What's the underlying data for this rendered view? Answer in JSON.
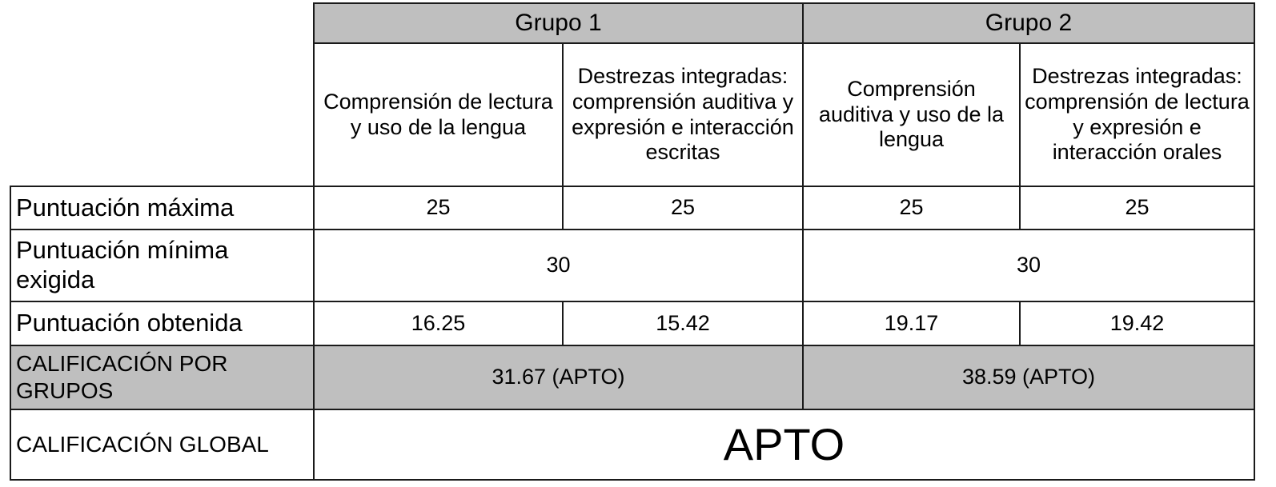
{
  "groups": [
    {
      "label": "Grupo 1"
    },
    {
      "label": "Grupo 2"
    }
  ],
  "subheadings": [
    "Comprensión de lectura y uso de la lengua",
    "Destrezas integradas: comprensión auditiva y expresión e interacción escritas",
    "Comprensión auditiva y uso de la lengua",
    "Destrezas integradas: comprensión de lectura y expresión e interacción orales"
  ],
  "rows": {
    "max_score": {
      "label": "Puntuación máxima",
      "values": [
        "25",
        "25",
        "25",
        "25"
      ]
    },
    "min_required": {
      "label": "Puntuación mínima exigida",
      "group_values": [
        "30",
        "30"
      ]
    },
    "obtained": {
      "label": "Puntuación obtenida",
      "values": [
        "16.25",
        "15.42",
        "19.17",
        "19.42"
      ]
    },
    "group_grade": {
      "label": "CALIFICACIÓN POR GRUPOS",
      "group_values": [
        "31.67 (APTO)",
        "38.59 (APTO)"
      ]
    },
    "global_grade": {
      "label": "CALIFICACIÓN GLOBAL",
      "value": "APTO"
    }
  },
  "colors": {
    "header_shade": "#bfbfbf",
    "border": "#1a1a1a"
  }
}
